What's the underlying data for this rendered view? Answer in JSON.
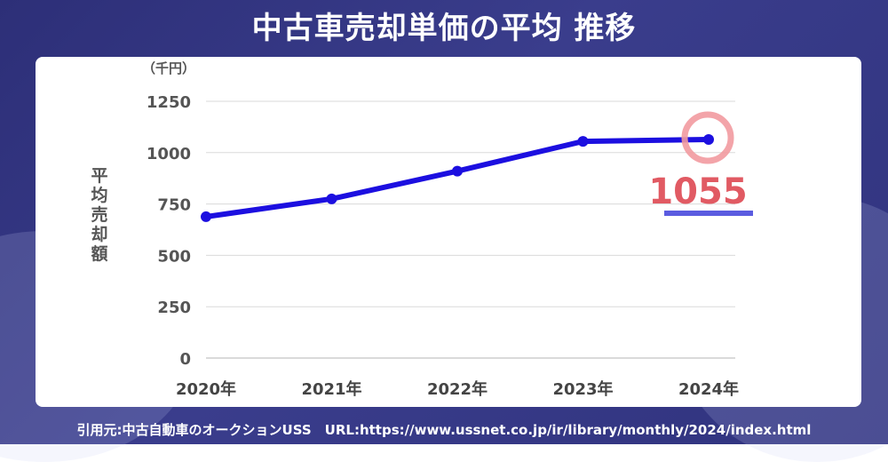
{
  "title": "中古車売却単価の平均 推移",
  "source": "引用元:中古自動車のオークションUSS　URL:https://www.ussnet.co.jp/ir/library/monthly/2024/index.html",
  "chart_data": {
    "type": "line",
    "title": "中古車売却単価の平均 推移",
    "categories": [
      "2020年",
      "2021年",
      "2022年",
      "2023年",
      "2024年"
    ],
    "series": [
      {
        "values": [
          688,
          775,
          910,
          1055,
          1064
        ],
        "color": "#1c0fe0"
      }
    ],
    "yticks": [
      "0",
      "250",
      "500",
      "750",
      "1000",
      "1250"
    ],
    "ylim": [
      0,
      1250
    ],
    "ylabel": "平均売却額",
    "yunit": "（千円）",
    "grid": true,
    "highlight": {
      "label": "1055",
      "color": "#e15a63",
      "underline_color": "#5b5ce0"
    }
  }
}
